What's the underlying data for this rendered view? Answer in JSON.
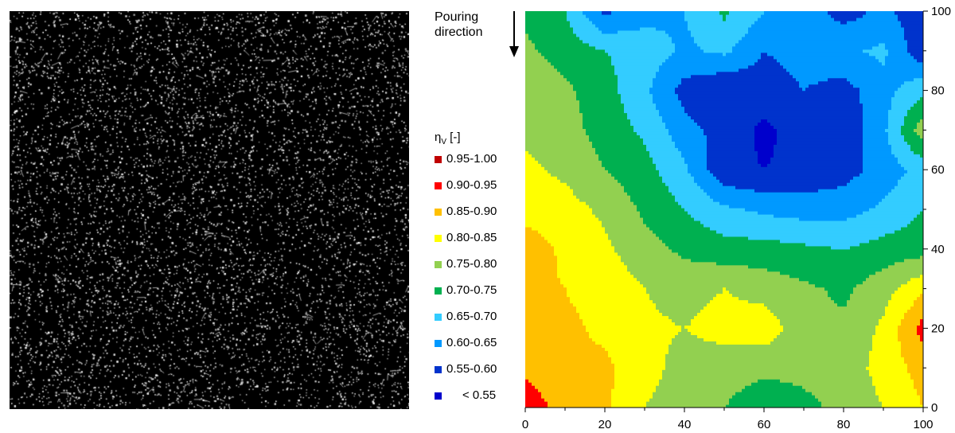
{
  "left_image": {
    "name": "Fiber distribution image"
  },
  "annotation": {
    "pouring_label": "Pouring\ndirection"
  },
  "chart_data": {
    "type": "heatmap",
    "subtype": "filled-contour",
    "legend_title": "η",
    "legend_title_sub": "V",
    "legend_title_suffix": " [-]",
    "legend_placement": "left",
    "levels": [
      {
        "label": "0.95-1.00",
        "range": [
          0.95,
          1.0
        ],
        "color": "#c00000"
      },
      {
        "label": "0.90-0.95",
        "range": [
          0.9,
          0.95
        ],
        "color": "#ff0000"
      },
      {
        "label": "0.85-0.90",
        "range": [
          0.85,
          0.9
        ],
        "color": "#ffc000"
      },
      {
        "label": "0.80-0.85",
        "range": [
          0.8,
          0.85
        ],
        "color": "#ffff00"
      },
      {
        "label": "0.75-0.80",
        "range": [
          0.75,
          0.8
        ],
        "color": "#92d050"
      },
      {
        "label": "0.70-0.75",
        "range": [
          0.7,
          0.75
        ],
        "color": "#00b050"
      },
      {
        "label": "0.65-0.70",
        "range": [
          0.65,
          0.7
        ],
        "color": "#33ccff"
      },
      {
        "label": "0.60-0.65",
        "range": [
          0.6,
          0.65
        ],
        "color": "#0099ff"
      },
      {
        "label": "0.55-0.60",
        "range": [
          0.55,
          0.6
        ],
        "color": "#0033cc"
      },
      {
        "label": "< 0.55",
        "range": [
          0.0,
          0.55
        ],
        "color": "#0000cc"
      }
    ],
    "xlim": [
      0,
      100
    ],
    "ylim": [
      0,
      100
    ],
    "x_ticks": [
      0,
      20,
      40,
      60,
      80,
      100
    ],
    "y_ticks": [
      0,
      20,
      40,
      60,
      80,
      100
    ],
    "x_grid": [
      0,
      10,
      20,
      30,
      40,
      50,
      60,
      70,
      80,
      90,
      100
    ],
    "y_grid": [
      0,
      10,
      20,
      30,
      40,
      50,
      60,
      70,
      80,
      90,
      100
    ],
    "z": [
      [
        0.93,
        0.88,
        0.86,
        0.8,
        0.77,
        0.75,
        0.72,
        0.74,
        0.76,
        0.8,
        0.85
      ],
      [
        0.89,
        0.86,
        0.86,
        0.82,
        0.78,
        0.77,
        0.76,
        0.76,
        0.77,
        0.82,
        0.87
      ],
      [
        0.87,
        0.86,
        0.84,
        0.81,
        0.8,
        0.82,
        0.83,
        0.77,
        0.76,
        0.81,
        0.92
      ],
      [
        0.86,
        0.85,
        0.83,
        0.8,
        0.78,
        0.8,
        0.78,
        0.76,
        0.74,
        0.78,
        0.84
      ],
      [
        0.88,
        0.84,
        0.81,
        0.77,
        0.74,
        0.72,
        0.72,
        0.71,
        0.7,
        0.72,
        0.73
      ],
      [
        0.83,
        0.82,
        0.79,
        0.74,
        0.7,
        0.66,
        0.64,
        0.63,
        0.63,
        0.66,
        0.7
      ],
      [
        0.81,
        0.79,
        0.75,
        0.72,
        0.66,
        0.56,
        0.55,
        0.56,
        0.58,
        0.62,
        0.67
      ],
      [
        0.79,
        0.77,
        0.73,
        0.69,
        0.62,
        0.58,
        0.54,
        0.57,
        0.56,
        0.64,
        0.78
      ],
      [
        0.78,
        0.76,
        0.72,
        0.66,
        0.58,
        0.55,
        0.57,
        0.6,
        0.58,
        0.63,
        0.69
      ],
      [
        0.76,
        0.73,
        0.7,
        0.68,
        0.64,
        0.66,
        0.6,
        0.62,
        0.64,
        0.66,
        0.56
      ],
      [
        0.74,
        0.7,
        0.59,
        0.63,
        0.65,
        0.71,
        0.65,
        0.63,
        0.58,
        0.61,
        0.57
      ]
    ]
  }
}
